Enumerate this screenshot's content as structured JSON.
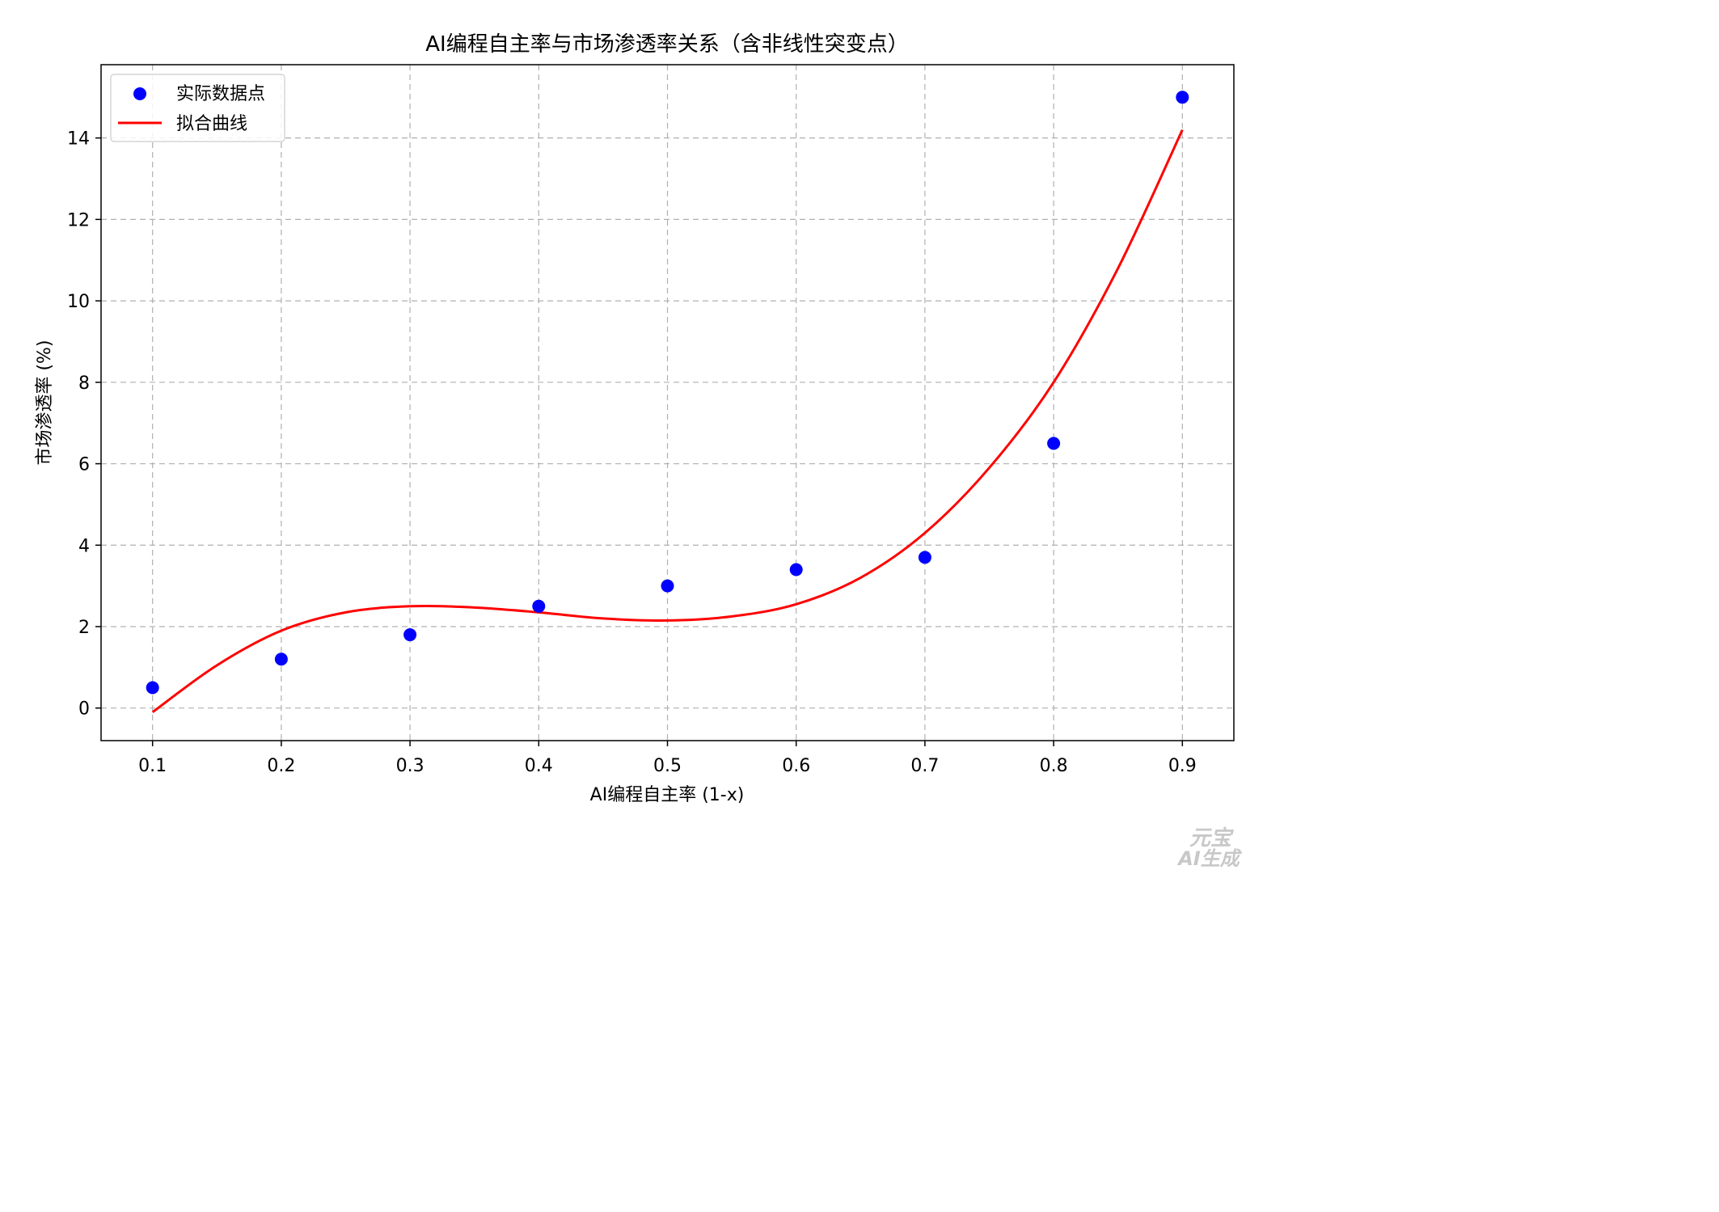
{
  "chart_data": {
    "type": "scatter",
    "title": "AI编程自主率与市场渗透率关系（含非线性突变点）",
    "xlabel": "AI编程自主率 (1-x)",
    "ylabel": "市场渗透率 (%)",
    "xlim": [
      0.06,
      0.94
    ],
    "ylim": [
      -0.8,
      15.8
    ],
    "xticks": [
      0.1,
      0.2,
      0.3,
      0.4,
      0.5,
      0.6,
      0.7,
      0.8,
      0.9
    ],
    "xtick_labels": [
      "0.1",
      "0.2",
      "0.3",
      "0.4",
      "0.5",
      "0.6",
      "0.7",
      "0.8",
      "0.9"
    ],
    "yticks": [
      0,
      2,
      4,
      6,
      8,
      10,
      12,
      14
    ],
    "ytick_labels": [
      "0",
      "2",
      "4",
      "6",
      "8",
      "10",
      "12",
      "14"
    ],
    "grid": true,
    "legend_position": "top-left",
    "series": [
      {
        "name": "实际数据点",
        "kind": "scatter",
        "color": "#0000ff",
        "x": [
          0.1,
          0.2,
          0.3,
          0.4,
          0.5,
          0.6,
          0.7,
          0.8,
          0.9
        ],
        "y": [
          0.5,
          1.2,
          1.8,
          2.5,
          3.0,
          3.4,
          3.7,
          6.5,
          15.0
        ]
      },
      {
        "name": "拟合曲线",
        "kind": "line",
        "color": "#ff0000",
        "x": [
          0.1,
          0.15,
          0.2,
          0.25,
          0.3,
          0.35,
          0.4,
          0.45,
          0.5,
          0.55,
          0.6,
          0.65,
          0.7,
          0.75,
          0.8,
          0.85,
          0.9
        ],
        "y": [
          -0.1,
          1.05,
          1.9,
          2.35,
          2.5,
          2.47,
          2.35,
          2.2,
          2.15,
          2.25,
          2.55,
          3.2,
          4.3,
          5.9,
          8.0,
          10.8,
          14.2
        ]
      }
    ]
  },
  "watermark": {
    "line1": "元宝",
    "line2": "AI生成"
  }
}
